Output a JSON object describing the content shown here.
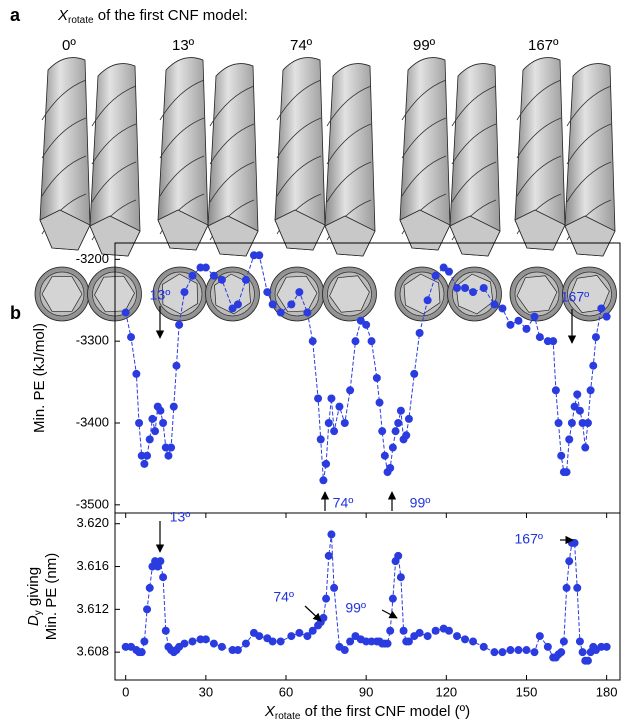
{
  "panel_a": {
    "label": "a",
    "heading_symbol": "X",
    "heading_subscript": "rotate",
    "heading_rest": " of the first CNF model:",
    "angles": [
      "0º",
      "13º",
      "74º",
      "99º",
      "167º"
    ]
  },
  "panel_b": {
    "label": "b"
  },
  "chart_data": [
    {
      "type": "line",
      "color": "#2a3be0",
      "y_label": "Min. PE (kJ/mol)",
      "x": [
        0,
        2,
        4,
        5,
        6,
        7,
        8,
        9,
        10,
        11,
        12,
        13,
        14,
        15,
        16,
        17,
        18,
        19,
        20,
        22,
        25,
        28,
        30,
        33,
        36,
        40,
        42,
        45,
        48,
        50,
        53,
        55,
        58,
        62,
        65,
        68,
        70,
        72,
        73,
        74,
        75,
        76,
        77,
        78,
        80,
        82,
        84,
        86,
        88,
        90,
        92,
        94,
        95,
        96,
        97,
        98,
        99,
        100,
        101,
        102,
        103,
        104,
        105,
        106,
        108,
        110,
        113,
        116,
        119,
        121,
        124,
        127,
        130,
        134,
        138,
        141,
        144,
        147,
        150,
        153,
        155,
        158,
        160,
        161,
        162,
        163,
        164,
        165,
        166,
        167,
        168,
        169,
        170,
        171,
        172,
        173,
        174,
        175,
        176,
        178,
        180
      ],
      "values": [
        -3265,
        -3295,
        -3340,
        -3400,
        -3440,
        -3450,
        -3440,
        -3420,
        -3395,
        -3410,
        -3380,
        -3385,
        -3400,
        -3430,
        -3440,
        -3430,
        -3380,
        -3330,
        -3280,
        -3240,
        -3220,
        -3210,
        -3210,
        -3220,
        -3225,
        -3260,
        -3255,
        -3225,
        -3195,
        -3195,
        -3240,
        -3255,
        -3265,
        -3255,
        -3240,
        -3265,
        -3300,
        -3370,
        -3420,
        -3470,
        -3450,
        -3400,
        -3370,
        -3410,
        -3380,
        -3400,
        -3360,
        -3300,
        -3275,
        -3280,
        -3300,
        -3345,
        -3375,
        -3410,
        -3440,
        -3460,
        -3455,
        -3430,
        -3410,
        -3400,
        -3385,
        -3420,
        -3415,
        -3395,
        -3340,
        -3290,
        -3250,
        -3220,
        -3210,
        -3215,
        -3235,
        -3235,
        -3240,
        -3235,
        -3255,
        -3260,
        -3280,
        -3275,
        -3285,
        -3270,
        -3295,
        -3300,
        -3300,
        -3360,
        -3400,
        -3440,
        -3460,
        -3460,
        -3420,
        -3400,
        -3380,
        -3365,
        -3385,
        -3400,
        -3430,
        -3400,
        -3360,
        -3330,
        -3295,
        -3260,
        -3270
      ],
      "xlim": [
        -4,
        185
      ],
      "ylim": [
        -3510,
        -3180
      ],
      "yticks": [
        -3500,
        -3400,
        -3300,
        -3200
      ],
      "annotations": [
        "13º",
        "74º",
        "99º",
        "167º"
      ]
    },
    {
      "type": "line",
      "color": "#2a3be0",
      "y_label_symbol": "D",
      "y_label_subscript": "y",
      "y_label_rest": " giving",
      "y_label_line2": "Min. PE (nm)",
      "x_label_symbol": "X",
      "x_label_subscript": "rotate",
      "x_label_rest": " of the first CNF model (º)",
      "x": [
        0,
        2,
        4,
        5,
        6,
        7,
        8,
        9,
        10,
        11,
        12,
        13,
        14,
        15,
        16,
        17,
        18,
        19,
        20,
        22,
        25,
        28,
        30,
        33,
        36,
        40,
        42,
        45,
        48,
        50,
        53,
        55,
        58,
        62,
        65,
        68,
        70,
        72,
        73,
        74,
        75,
        76,
        77,
        78,
        80,
        82,
        84,
        86,
        88,
        90,
        92,
        94,
        95,
        96,
        97,
        98,
        99,
        100,
        101,
        102,
        103,
        104,
        105,
        106,
        108,
        110,
        113,
        116,
        119,
        121,
        124,
        127,
        130,
        134,
        138,
        141,
        144,
        147,
        150,
        153,
        155,
        158,
        160,
        161,
        162,
        163,
        164,
        165,
        166,
        167,
        168,
        169,
        170,
        171,
        172,
        173,
        174,
        175,
        176,
        178,
        180
      ],
      "values": [
        3.6085,
        3.6085,
        3.6082,
        3.608,
        3.608,
        3.609,
        3.612,
        3.614,
        3.616,
        3.6165,
        3.616,
        3.6165,
        3.615,
        3.61,
        3.6085,
        3.6082,
        3.608,
        3.6082,
        3.6085,
        3.6088,
        3.609,
        3.6092,
        3.6092,
        3.6088,
        3.6085,
        3.6082,
        3.6082,
        3.6088,
        3.6098,
        3.6095,
        3.6093,
        3.609,
        3.609,
        3.6095,
        3.6098,
        3.6095,
        3.61,
        3.6105,
        3.6108,
        3.6112,
        3.613,
        3.617,
        3.619,
        3.614,
        3.6085,
        3.6082,
        3.609,
        3.6095,
        3.6092,
        3.609,
        3.609,
        3.609,
        3.609,
        3.6088,
        3.6088,
        3.6088,
        3.61,
        3.613,
        3.6165,
        3.617,
        3.615,
        3.61,
        3.609,
        3.609,
        3.6095,
        3.6098,
        3.6095,
        3.61,
        3.6102,
        3.61,
        3.6095,
        3.6092,
        3.609,
        3.6085,
        3.608,
        3.608,
        3.6082,
        3.6082,
        3.6082,
        3.608,
        3.6095,
        3.6085,
        3.6075,
        3.6075,
        3.6078,
        3.608,
        3.609,
        3.614,
        3.6165,
        3.6182,
        3.6182,
        3.614,
        3.609,
        3.608,
        3.6072,
        3.6072,
        3.608,
        3.6085,
        3.6082,
        3.6085,
        3.6085
      ],
      "xlim": [
        -4,
        185
      ],
      "xticks": [
        0,
        30,
        60,
        90,
        120,
        150,
        180
      ],
      "ylim": [
        3.6054,
        3.621
      ],
      "yticks": [
        3.608,
        3.612,
        3.616,
        {
          "value": 3.62,
          "label": "3.620"
        }
      ],
      "annotations": [
        "13º",
        "74º",
        "99º",
        "167º"
      ]
    }
  ]
}
